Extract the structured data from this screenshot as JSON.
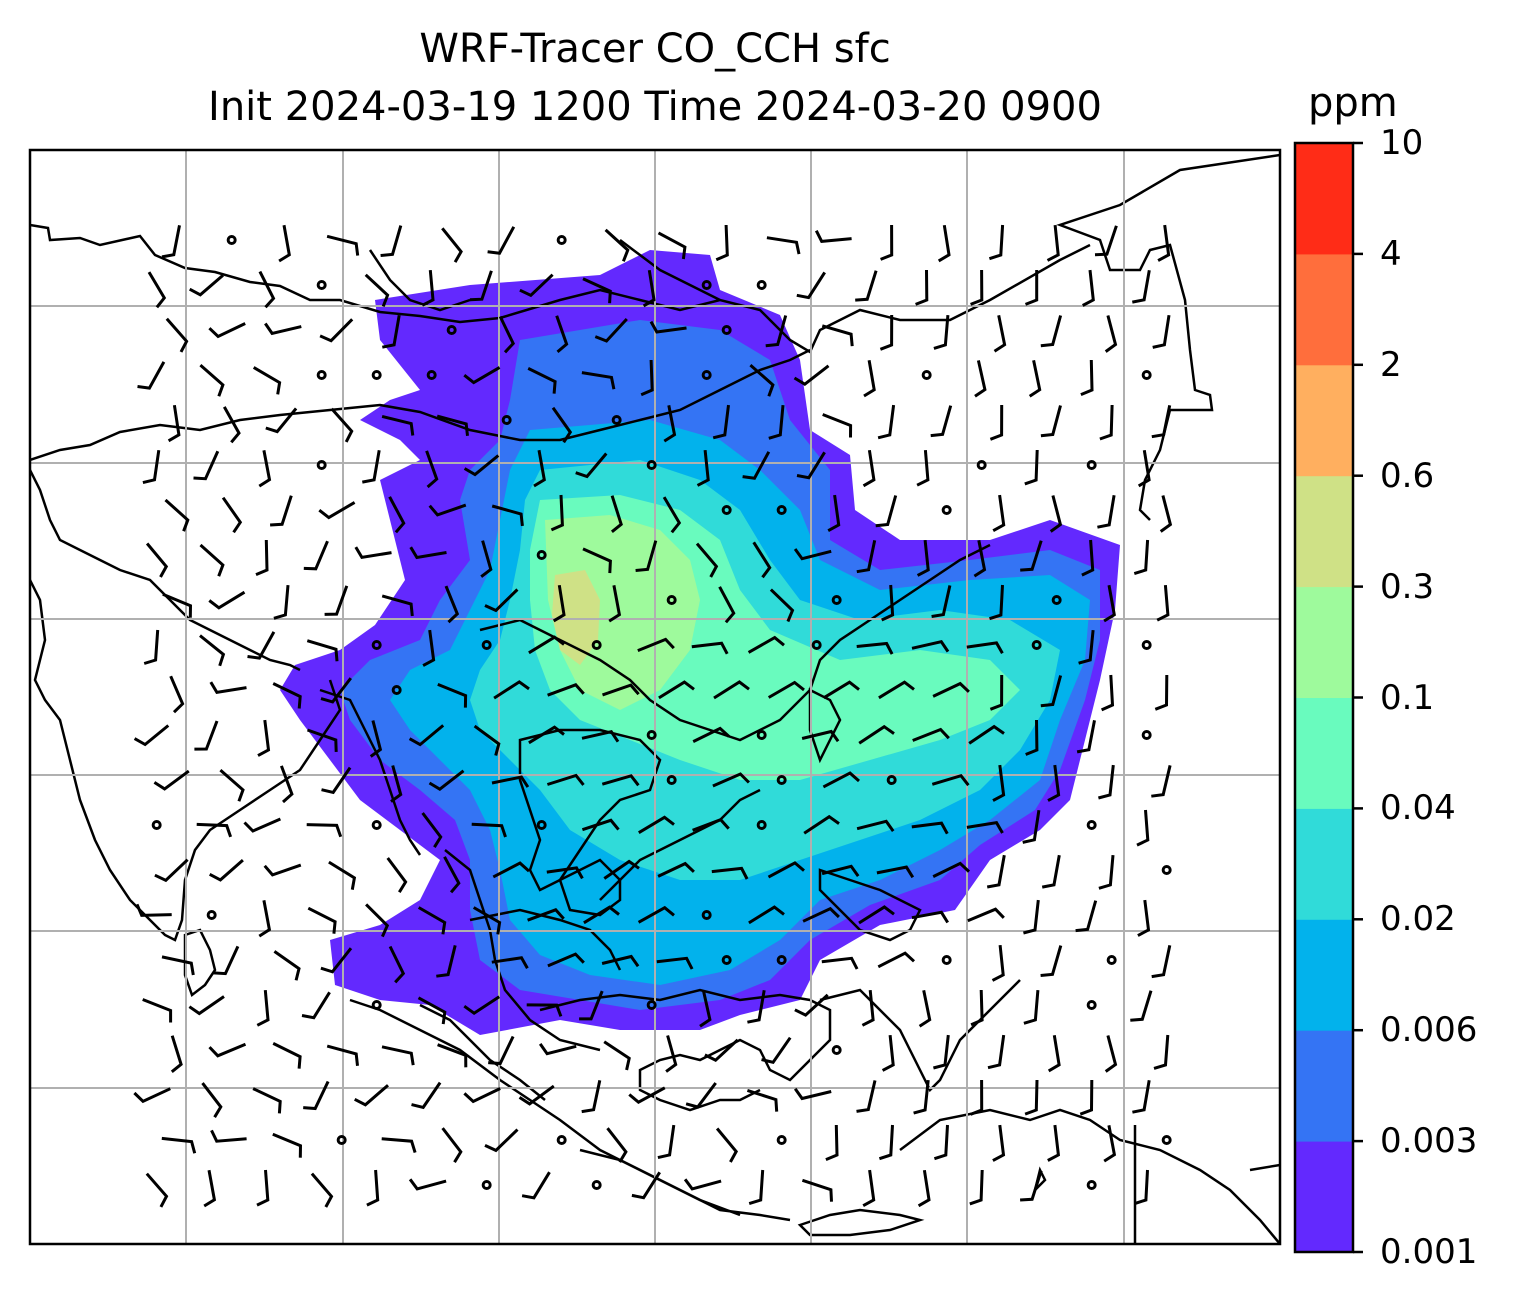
{
  "title": {
    "line1": "WRF-Tracer CO_CCH sfc",
    "line2": "Init 2024-03-19 1200 Time 2024-03-20 0900"
  },
  "colorbar": {
    "unit": "ppm",
    "levels": [
      "0.001",
      "0.003",
      "0.006",
      "0.02",
      "0.04",
      "0.1",
      "0.3",
      "0.6",
      "2",
      "4",
      "10"
    ],
    "colors": [
      "#6329fe",
      "#3474f4",
      "#02b2ec",
      "#30dbd9",
      "#69fbbe",
      "#9efa9c",
      "#cfe186",
      "#ffaf5f",
      "#ff6e3c",
      "#ff2c17"
    ]
  },
  "map": {
    "field": "CO_CCH surface tracer concentration",
    "overlay": "wind barbs",
    "gridlines": true
  }
}
